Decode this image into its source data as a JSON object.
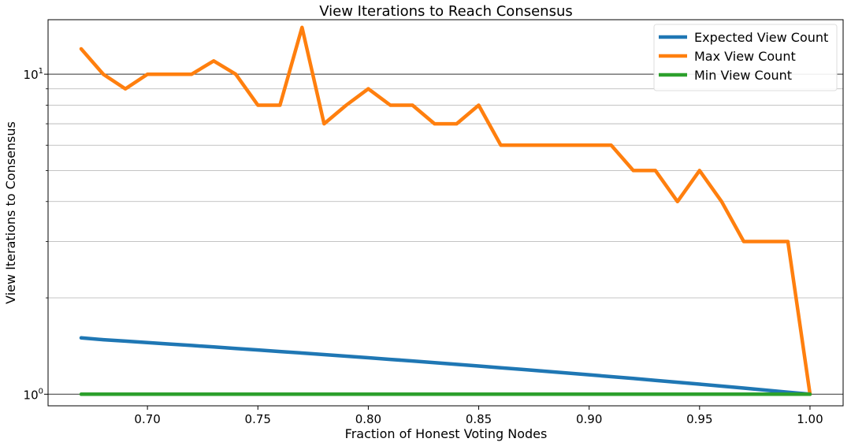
{
  "chart_data": {
    "type": "line",
    "title": "View Iterations to Reach Consensus",
    "xlabel": "Fraction of Honest Voting Nodes",
    "ylabel": "View Iterations to Consensus",
    "yscale": "log",
    "xlim": [
      0.655,
      1.015
    ],
    "ylim": [
      0.92,
      14.8
    ],
    "x_ticks": [
      {
        "value": 0.7,
        "label": "0.70"
      },
      {
        "value": 0.75,
        "label": "0.75"
      },
      {
        "value": 0.8,
        "label": "0.80"
      },
      {
        "value": 0.85,
        "label": "0.85"
      },
      {
        "value": 0.9,
        "label": "0.90"
      },
      {
        "value": 0.95,
        "label": "0.95"
      },
      {
        "value": 1.0,
        "label": "1.00"
      }
    ],
    "y_major_ticks": [
      {
        "value": 1,
        "base": "10",
        "exp": "0"
      },
      {
        "value": 10,
        "base": "10",
        "exp": "1"
      }
    ],
    "y_minor_ticks": [
      2,
      3,
      4,
      5,
      6,
      7,
      8,
      9
    ],
    "grid": true,
    "legend_position": "top-right",
    "x": [
      0.67,
      0.68,
      0.69,
      0.7,
      0.71,
      0.72,
      0.73,
      0.74,
      0.75,
      0.76,
      0.77,
      0.78,
      0.79,
      0.8,
      0.81,
      0.82,
      0.83,
      0.84,
      0.85,
      0.86,
      0.87,
      0.88,
      0.89,
      0.9,
      0.91,
      0.92,
      0.93,
      0.94,
      0.95,
      0.96,
      0.97,
      0.98,
      0.99,
      1.0
    ],
    "series": [
      {
        "name": "Expected View Count",
        "color": "#1f77b4",
        "values": [
          1.5,
          1.48,
          1.465,
          1.45,
          1.435,
          1.42,
          1.405,
          1.39,
          1.375,
          1.36,
          1.345,
          1.33,
          1.315,
          1.3,
          1.285,
          1.27,
          1.255,
          1.24,
          1.225,
          1.21,
          1.195,
          1.18,
          1.165,
          1.15,
          1.135,
          1.12,
          1.105,
          1.09,
          1.075,
          1.06,
          1.045,
          1.03,
          1.015,
          1.0
        ]
      },
      {
        "name": "Max View Count",
        "color": "#ff7f0e",
        "values": [
          12,
          10,
          9,
          10,
          10,
          10,
          11,
          10,
          8,
          8,
          14,
          7,
          8,
          9,
          8,
          8,
          7,
          7,
          8,
          6,
          6,
          6,
          6,
          6,
          6,
          5,
          5,
          4,
          5,
          4,
          3,
          3,
          3,
          1
        ]
      },
      {
        "name": "Min View Count",
        "color": "#2ca02c",
        "values": [
          1,
          1,
          1,
          1,
          1,
          1,
          1,
          1,
          1,
          1,
          1,
          1,
          1,
          1,
          1,
          1,
          1,
          1,
          1,
          1,
          1,
          1,
          1,
          1,
          1,
          1,
          1,
          1,
          1,
          1,
          1,
          1,
          1,
          1
        ]
      }
    ]
  }
}
